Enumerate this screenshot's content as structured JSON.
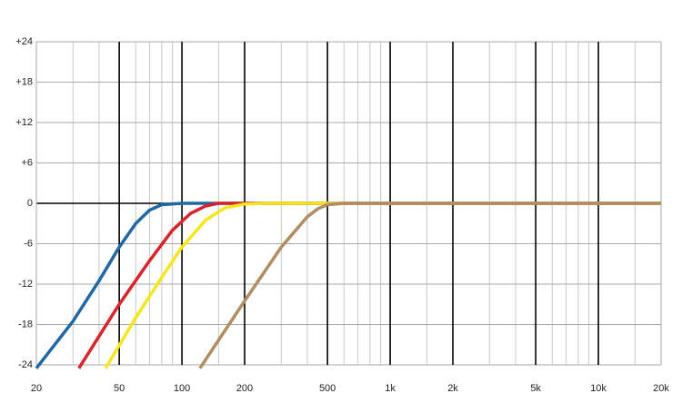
{
  "chart_data": {
    "type": "line",
    "xscale": "log",
    "xlim": [
      20,
      20000
    ],
    "ylim": [
      -24,
      24
    ],
    "xticks": [
      20,
      50,
      100,
      200,
      500,
      {
        "value": 1000,
        "label": "1k"
      },
      {
        "value": 2000,
        "label": "2k"
      },
      {
        "value": 5000,
        "label": "5k"
      },
      {
        "value": 10000,
        "label": "10k"
      },
      {
        "value": 20000,
        "label": "20k"
      }
    ],
    "minor_xticks": [
      30,
      40,
      60,
      70,
      80,
      90,
      150,
      300,
      400,
      600,
      700,
      800,
      900,
      1500,
      3000,
      4000,
      6000,
      7000,
      8000,
      9000,
      15000
    ],
    "yticks": [
      {
        "value": 24,
        "label": "+24"
      },
      {
        "value": 18,
        "label": "+18"
      },
      {
        "value": 12,
        "label": "+12"
      },
      {
        "value": 6,
        "label": "+6"
      },
      0,
      -6,
      -12,
      -18,
      -24
    ],
    "grid": true,
    "series": [
      {
        "color": "#1f67a6",
        "x": [
          20,
          30,
          40,
          50,
          60,
          70,
          80,
          100,
          200,
          20000
        ],
        "values": [
          -24.5,
          -17.5,
          -11.5,
          -6.5,
          -3,
          -1,
          -0.2,
          0,
          0,
          0
        ]
      },
      {
        "color": "#d9242b",
        "x": [
          32,
          50,
          70,
          90,
          110,
          130,
          150,
          20000
        ],
        "values": [
          -24.5,
          -15,
          -8.5,
          -4,
          -1.5,
          -0.4,
          0,
          0
        ]
      },
      {
        "color": "#f5e71c",
        "x": [
          43,
          60,
          80,
          100,
          130,
          160,
          200,
          250,
          20000
        ],
        "values": [
          -24.5,
          -17,
          -11,
          -6.5,
          -2.5,
          -0.7,
          -0.1,
          0,
          0
        ]
      },
      {
        "color": "#b08d63",
        "x": [
          122,
          200,
          300,
          400,
          450,
          500,
          600,
          20000
        ],
        "values": [
          -24.5,
          -14.5,
          -6.5,
          -2,
          -0.8,
          -0.2,
          0,
          0
        ]
      }
    ]
  }
}
